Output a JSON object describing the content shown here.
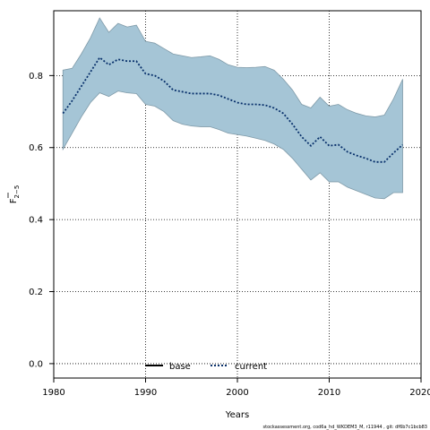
{
  "chart_data": {
    "type": "area",
    "xlabel": "Years",
    "ylabel_main": "F",
    "ylabel_sub": "2−5",
    "xlim": [
      1980,
      2020
    ],
    "ylim": [
      -0.04,
      0.98
    ],
    "xticks": [
      1980,
      1990,
      2000,
      2010,
      2020
    ],
    "yticks": [
      0.0,
      0.2,
      0.4,
      0.6,
      0.8
    ],
    "ytick_labels": [
      "0.0",
      "0.2",
      "0.4",
      "0.6",
      "0.8"
    ],
    "grid": true,
    "legend_placement": "bottom",
    "x": [
      1981,
      1982,
      1983,
      1984,
      1985,
      1986,
      1987,
      1988,
      1989,
      1990,
      1991,
      1992,
      1993,
      1994,
      1995,
      1996,
      1997,
      1998,
      1999,
      2000,
      2001,
      2002,
      2003,
      2004,
      2005,
      2006,
      2007,
      2008,
      2009,
      2010,
      2011,
      2012,
      2013,
      2014,
      2015,
      2016,
      2017,
      2018
    ],
    "series": [
      {
        "name": "current",
        "style": "dotted",
        "color": "#08306b",
        "values": [
          0.695,
          0.73,
          0.77,
          0.81,
          0.85,
          0.83,
          0.845,
          0.84,
          0.84,
          0.805,
          0.8,
          0.785,
          0.76,
          0.755,
          0.75,
          0.75,
          0.75,
          0.745,
          0.735,
          0.725,
          0.72,
          0.72,
          0.718,
          0.71,
          0.695,
          0.665,
          0.63,
          0.605,
          0.63,
          0.605,
          0.608,
          0.588,
          0.578,
          0.57,
          0.56,
          0.56,
          0.585,
          0.608
        ]
      }
    ],
    "band": {
      "fill": "#a5c5d6",
      "stroke": "#7f9aa8",
      "upper": [
        0.815,
        0.82,
        0.86,
        0.905,
        0.96,
        0.92,
        0.945,
        0.935,
        0.94,
        0.895,
        0.89,
        0.875,
        0.86,
        0.855,
        0.85,
        0.852,
        0.855,
        0.845,
        0.83,
        0.823,
        0.822,
        0.823,
        0.825,
        0.815,
        0.79,
        0.76,
        0.72,
        0.71,
        0.74,
        0.715,
        0.72,
        0.705,
        0.695,
        0.688,
        0.685,
        0.69,
        0.735,
        0.79
      ],
      "lower": [
        0.595,
        0.64,
        0.685,
        0.725,
        0.752,
        0.742,
        0.757,
        0.752,
        0.75,
        0.72,
        0.715,
        0.7,
        0.675,
        0.665,
        0.66,
        0.658,
        0.658,
        0.65,
        0.64,
        0.636,
        0.632,
        0.626,
        0.62,
        0.61,
        0.595,
        0.57,
        0.54,
        0.51,
        0.53,
        0.505,
        0.505,
        0.49,
        0.48,
        0.47,
        0.46,
        0.458,
        0.475,
        0.475
      ]
    },
    "legend": [
      {
        "label": "base",
        "style": "solid",
        "color": "#000000"
      },
      {
        "label": "current",
        "style": "dotted",
        "color": "#08306b"
      }
    ]
  },
  "footer_text": "stockassessment.org, cod6a_hd_WKDEM3_M, r11944 , git: df6b7c1bcb83"
}
